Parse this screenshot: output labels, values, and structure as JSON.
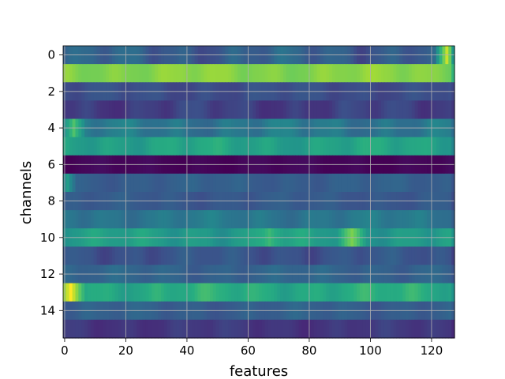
{
  "chart_data": {
    "type": "heatmap",
    "title": "",
    "xlabel": "features",
    "ylabel": "channels",
    "colormap": "viridis",
    "rows": 16,
    "cols": 128,
    "x_range": [
      -0.5,
      127.5
    ],
    "y_range": [
      -0.5,
      15.5
    ],
    "x_ticks": [
      0,
      20,
      40,
      60,
      80,
      100,
      120
    ],
    "y_ticks": [
      0,
      2,
      4,
      6,
      8,
      10,
      12,
      14
    ],
    "grid": true,
    "grid_color": "#b0b0b0",
    "row_levels": [
      {
        "channel": 0,
        "base": 0.3,
        "variation": 0.1,
        "hotspots": [
          {
            "center": 125,
            "width": 3,
            "value": 0.92
          }
        ]
      },
      {
        "channel": 1,
        "base": 0.82,
        "variation": 0.05,
        "hotspots": []
      },
      {
        "channel": 2,
        "base": 0.24,
        "variation": 0.04,
        "hotspots": []
      },
      {
        "channel": 3,
        "base": 0.2,
        "variation": 0.06,
        "hotspots": []
      },
      {
        "channel": 4,
        "base": 0.4,
        "variation": 0.08,
        "hotspots": [
          {
            "center": 3,
            "width": 3,
            "value": 0.72
          }
        ]
      },
      {
        "channel": 5,
        "base": 0.58,
        "variation": 0.08,
        "hotspots": []
      },
      {
        "channel": 6,
        "base": 0.02,
        "variation": 0.03,
        "hotspots": []
      },
      {
        "channel": 7,
        "base": 0.3,
        "variation": 0.04,
        "hotspots": [
          {
            "center": 1,
            "width": 2,
            "value": 0.55
          }
        ]
      },
      {
        "channel": 8,
        "base": 0.28,
        "variation": 0.04,
        "hotspots": []
      },
      {
        "channel": 9,
        "base": 0.4,
        "variation": 0.06,
        "hotspots": []
      },
      {
        "channel": 10,
        "base": 0.55,
        "variation": 0.08,
        "hotspots": [
          {
            "center": 94,
            "width": 4,
            "value": 0.8
          },
          {
            "center": 67,
            "width": 4,
            "value": 0.68
          }
        ]
      },
      {
        "channel": 11,
        "base": 0.26,
        "variation": 0.06,
        "hotspots": []
      },
      {
        "channel": 12,
        "base": 0.32,
        "variation": 0.05,
        "hotspots": []
      },
      {
        "channel": 13,
        "base": 0.62,
        "variation": 0.08,
        "hotspots": [
          {
            "center": 2,
            "width": 4,
            "value": 1.0
          }
        ]
      },
      {
        "channel": 14,
        "base": 0.3,
        "variation": 0.05,
        "hotspots": []
      },
      {
        "channel": 15,
        "base": 0.18,
        "variation": 0.04,
        "hotspots": []
      }
    ]
  }
}
